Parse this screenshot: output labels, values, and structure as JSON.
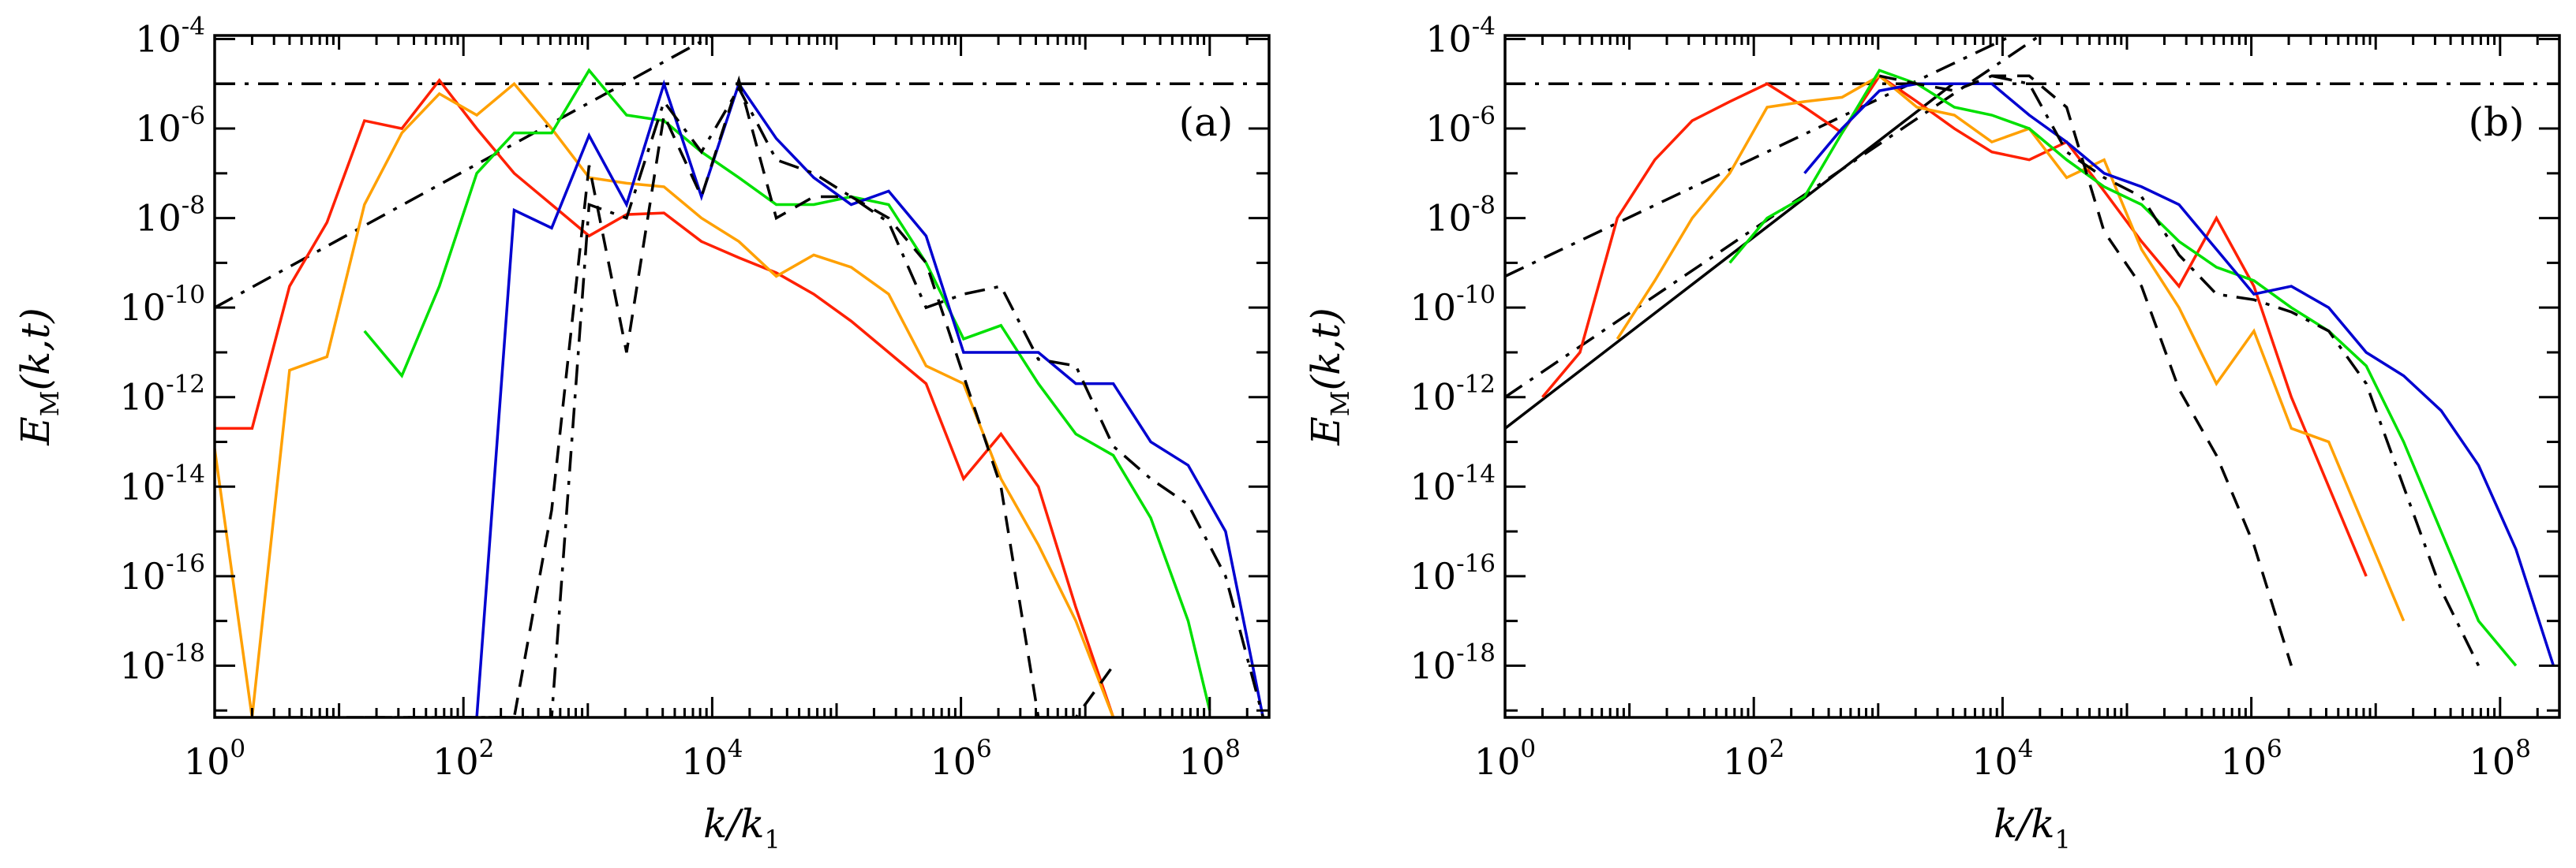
{
  "chart_data": [
    {
      "type": "line",
      "panel_label": "(a)",
      "xlabel": {
        "main": "k/k",
        "sub": "1"
      },
      "ylabel": {
        "main": "E",
        "sub": "M",
        "args": "(k,t)"
      },
      "xscale": "log",
      "yscale": "log",
      "xlim": [
        1,
        300000000.0
      ],
      "ylim": [
        7e-20,
        0.00012
      ],
      "xticks": [
        {
          "base": "10",
          "exp": "0",
          "value": 1
        },
        {
          "base": "10",
          "exp": "2",
          "value": 100
        },
        {
          "base": "10",
          "exp": "4",
          "value": 10000
        },
        {
          "base": "10",
          "exp": "6",
          "value": 1000000
        },
        {
          "base": "10",
          "exp": "8",
          "value": 100000000
        }
      ],
      "yticks": [
        {
          "base": "10",
          "exp": "-4",
          "value": 0.0001
        },
        {
          "base": "10",
          "exp": "-6",
          "value": 1e-06
        },
        {
          "base": "10",
          "exp": "-8",
          "value": 1e-08
        },
        {
          "base": "10",
          "exp": "-10",
          "value": 1e-10
        },
        {
          "base": "10",
          "exp": "-12",
          "value": 1e-12
        },
        {
          "base": "10",
          "exp": "-14",
          "value": 1e-14
        },
        {
          "base": "10",
          "exp": "-16",
          "value": 1e-16
        },
        {
          "base": "10",
          "exp": "-18",
          "value": 1e-18
        }
      ],
      "series": [
        {
          "name": "red",
          "color": "#ff2000",
          "style": "solid",
          "x": [
            1,
            2,
            4,
            8,
            16,
            32,
            64,
            128,
            256,
            512,
            1024,
            2048,
            4096,
            8192,
            16384,
            32768,
            65536,
            131072,
            262144,
            524288,
            1048576,
            2097152,
            4194304,
            8388608,
            16777216
          ],
          "y": [
            2e-13,
            2e-13,
            3e-10,
            8e-09,
            1.5e-06,
            1e-06,
            1.2e-05,
            1e-06,
            1e-07,
            2e-08,
            4e-09,
            1.2e-08,
            1.3e-08,
            3e-09,
            1.3e-09,
            6e-10,
            2e-10,
            5e-11,
            1e-11,
            2e-12,
            1.5e-14,
            1.5e-13,
            1e-14,
            2e-17,
            7e-20
          ]
        },
        {
          "name": "orange",
          "color": "#ffa000",
          "style": "solid",
          "x": [
            1,
            2,
            4,
            8,
            16,
            32,
            64,
            128,
            256,
            512,
            1024,
            2048,
            4096,
            8192,
            16384,
            32768,
            65536,
            131072,
            262144,
            524288,
            1048576,
            2097152,
            4194304,
            8388608,
            16777216
          ],
          "y": [
            7e-14,
            7e-20,
            4e-12,
            8e-12,
            2e-08,
            8e-07,
            6e-06,
            2e-06,
            1e-05,
            1e-06,
            8e-08,
            6e-08,
            5e-08,
            1e-08,
            3e-09,
            5e-10,
            1.5e-09,
            8e-10,
            2e-10,
            5e-12,
            2e-12,
            1.5e-14,
            5e-16,
            1e-17,
            7e-20
          ]
        },
        {
          "name": "green",
          "color": "#00e000",
          "style": "solid",
          "x": [
            16,
            32,
            64,
            128,
            256,
            512,
            1024,
            2048,
            4096,
            8192,
            16384,
            32768,
            65536,
            131072,
            262144,
            524288,
            1048576,
            2097152,
            4194304,
            8388608,
            16777216,
            33554432,
            67108864,
            100000000
          ],
          "y": [
            3e-11,
            3e-12,
            3e-10,
            1e-07,
            8e-07,
            8e-07,
            2e-05,
            2e-06,
            1.5e-06,
            3e-07,
            8e-08,
            2e-08,
            2e-08,
            3e-08,
            2e-08,
            1e-09,
            2e-11,
            4e-11,
            2e-12,
            1.5e-13,
            5e-14,
            2e-15,
            1e-17,
            1e-19
          ]
        },
        {
          "name": "blue",
          "color": "#0000d0",
          "style": "solid",
          "x": [
            64,
            128,
            256,
            512,
            1024,
            2048,
            4096,
            8192,
            16384,
            32768,
            65536,
            131072,
            262144,
            524288,
            1048576,
            2097152,
            4194304,
            8388608,
            16777216,
            33554432,
            67108864,
            134217728,
            268435456
          ],
          "y": [
            7e-20,
            7e-20,
            1.5e-08,
            6e-09,
            7e-07,
            2e-08,
            1e-05,
            3e-08,
            1e-05,
            6e-07,
            8e-08,
            2e-08,
            4e-08,
            4e-09,
            1e-11,
            1e-11,
            1e-11,
            2e-12,
            2e-12,
            1e-13,
            3e-14,
            1e-15,
            7e-20
          ]
        },
        {
          "name": "black-dashed",
          "color": "#000000",
          "style": "dashed",
          "x": [
            4,
            8,
            16,
            32,
            64,
            128,
            256,
            512,
            1024,
            2048,
            4096,
            8192,
            16384,
            32768,
            65536,
            131072,
            262144,
            524288,
            1048576,
            2097152,
            4194304,
            8388608,
            16777216
          ],
          "y": [
            7e-20,
            7e-20,
            7e-20,
            7e-20,
            7e-20,
            7e-20,
            7e-20,
            3e-15,
            1.5e-07,
            1e-11,
            2e-06,
            3e-08,
            1.2e-05,
            1e-08,
            3e-08,
            3e-08,
            1e-08,
            1e-09,
            3e-12,
            1e-14,
            7e-20,
            7e-20,
            1e-18
          ]
        },
        {
          "name": "black-dashdot",
          "color": "#000000",
          "style": "dashdot",
          "x": [
            16,
            32,
            64,
            128,
            256,
            512,
            1024,
            2048,
            4096,
            8192,
            16384,
            32768,
            65536,
            131072,
            262144,
            524288,
            1048576,
            2097152,
            4194304,
            8388608,
            16777216,
            33554432,
            67108864,
            134217728,
            268435456
          ],
          "y": [
            7e-20,
            7e-20,
            7e-20,
            7e-20,
            7e-20,
            7e-20,
            2e-08,
            1e-08,
            4e-06,
            3e-07,
            8e-06,
            2e-07,
            1e-07,
            3e-08,
            8e-09,
            1e-10,
            2e-10,
            3e-10,
            7e-12,
            5e-12,
            8e-14,
            1.5e-14,
            4e-15,
            1e-16,
            7e-20
          ]
        }
      ],
      "reference_lines": [
        {
          "name": "horizontal-ref",
          "style": "dashdot",
          "x": [
            1,
            300000000.0
          ],
          "y": [
            1e-05,
            1e-05
          ]
        },
        {
          "name": "sloped-ref",
          "style": "dashdot",
          "x": [
            1,
            10000
          ],
          "y": [
            1e-10,
            0.00012
          ]
        }
      ]
    },
    {
      "type": "line",
      "panel_label": "(b)",
      "xlabel": {
        "main": "k/k",
        "sub": "1"
      },
      "ylabel": {
        "main": "E",
        "sub": "M",
        "args": "(k,t)"
      },
      "xscale": "log",
      "yscale": "log",
      "xlim": [
        1,
        300000000.0
      ],
      "ylim": [
        7e-20,
        0.00012
      ],
      "xticks": [
        {
          "base": "10",
          "exp": "0",
          "value": 1
        },
        {
          "base": "10",
          "exp": "2",
          "value": 100
        },
        {
          "base": "10",
          "exp": "4",
          "value": 10000
        },
        {
          "base": "10",
          "exp": "6",
          "value": 1000000
        },
        {
          "base": "10",
          "exp": "8",
          "value": 100000000
        }
      ],
      "yticks": [
        {
          "base": "10",
          "exp": "-4",
          "value": 0.0001
        },
        {
          "base": "10",
          "exp": "-6",
          "value": 1e-06
        },
        {
          "base": "10",
          "exp": "-8",
          "value": 1e-08
        },
        {
          "base": "10",
          "exp": "-10",
          "value": 1e-10
        },
        {
          "base": "10",
          "exp": "-12",
          "value": 1e-12
        },
        {
          "base": "10",
          "exp": "-14",
          "value": 1e-14
        },
        {
          "base": "10",
          "exp": "-16",
          "value": 1e-16
        },
        {
          "base": "10",
          "exp": "-18",
          "value": 1e-18
        }
      ],
      "series": [
        {
          "name": "red",
          "color": "#ff2000",
          "style": "solid",
          "x": [
            2,
            4,
            8,
            16,
            32,
            64,
            128,
            256,
            512,
            1024,
            2048,
            4096,
            8192,
            16384,
            32768,
            65536,
            131072,
            262144,
            524288,
            1048576,
            2097152,
            4194304,
            8388608
          ],
          "y": [
            1e-12,
            1e-11,
            1e-08,
            2e-07,
            1.5e-06,
            4e-06,
            1e-05,
            3e-06,
            8e-07,
            1.5e-05,
            4e-06,
            1e-06,
            3e-07,
            2e-07,
            5e-07,
            4e-08,
            3e-09,
            3e-10,
            1e-08,
            3e-10,
            1e-12,
            1e-14,
            1e-16
          ]
        },
        {
          "name": "orange",
          "color": "#ffa000",
          "style": "solid",
          "x": [
            8,
            16,
            32,
            64,
            128,
            256,
            512,
            1024,
            2048,
            4096,
            8192,
            16384,
            32768,
            65536,
            131072,
            262144,
            524288,
            1048576,
            2097152,
            4194304,
            8388608,
            16777216
          ],
          "y": [
            2e-11,
            4e-10,
            1e-08,
            1e-07,
            3e-06,
            4e-06,
            5e-06,
            1.5e-05,
            3e-06,
            2e-06,
            5e-07,
            1e-06,
            8e-08,
            2e-07,
            2e-09,
            1e-10,
            2e-12,
            3e-11,
            2e-13,
            1e-13,
            1e-15,
            1e-17
          ]
        },
        {
          "name": "green",
          "color": "#00e000",
          "style": "solid",
          "x": [
            64,
            128,
            256,
            512,
            1024,
            2048,
            4096,
            8192,
            16384,
            32768,
            65536,
            131072,
            262144,
            524288,
            1048576,
            2097152,
            4194304,
            8388608,
            16777216,
            33554432,
            67108864,
            134217728
          ],
          "y": [
            1e-09,
            1e-08,
            3e-08,
            8e-07,
            2e-05,
            1e-05,
            3e-06,
            2e-06,
            1e-06,
            2e-07,
            5e-08,
            2e-08,
            3e-09,
            8e-10,
            4e-10,
            1e-10,
            3e-11,
            5e-12,
            1e-13,
            1e-15,
            1e-17,
            1e-18
          ]
        },
        {
          "name": "blue",
          "color": "#0000d0",
          "style": "solid",
          "x": [
            256,
            512,
            1024,
            2048,
            4096,
            8192,
            16384,
            32768,
            65536,
            131072,
            262144,
            524288,
            1048576,
            2097152,
            4194304,
            8388608,
            16777216,
            33554432,
            67108864,
            134217728,
            268435456
          ],
          "y": [
            1e-07,
            1e-06,
            7e-06,
            1e-05,
            1e-05,
            1e-05,
            2e-06,
            5e-07,
            1e-07,
            5e-08,
            2e-08,
            2e-09,
            2e-10,
            3e-10,
            1e-10,
            1e-11,
            3e-12,
            5e-13,
            3e-14,
            4e-16,
            1e-18
          ]
        },
        {
          "name": "black-dashed",
          "color": "#000000",
          "style": "dashed",
          "x": [
            1024,
            2048,
            4096,
            8192,
            16384,
            32768,
            65536,
            131072,
            262144,
            524288,
            1048576,
            2097152
          ],
          "y": [
            1.5e-05,
            1e-05,
            7e-06,
            1.5e-05,
            1.5e-05,
            3e-06,
            5e-09,
            3e-10,
            1.5e-12,
            5e-14,
            5e-16,
            1e-18
          ]
        },
        {
          "name": "black-dashdot",
          "color": "#000000",
          "style": "dashdot",
          "x": [
            8192,
            16384,
            32768,
            65536,
            131072,
            262144,
            524288,
            1048576,
            2097152,
            4194304,
            8388608,
            16777216,
            33554432,
            67108864
          ],
          "y": [
            1.5e-05,
            1e-05,
            3e-07,
            8e-08,
            3e-08,
            1.5e-09,
            2e-10,
            1.5e-10,
            8e-11,
            3e-11,
            2e-12,
            1e-14,
            5e-17,
            1e-18
          ]
        }
      ],
      "reference_lines": [
        {
          "name": "horizontal-ref",
          "style": "dashdot",
          "x": [
            1,
            300000000.0
          ],
          "y": [
            1e-05,
            1e-05
          ]
        },
        {
          "name": "sloped-ref-upper",
          "style": "dashdot",
          "x": [
            1,
            12000
          ],
          "y": [
            5e-10,
            0.00012
          ]
        },
        {
          "name": "sloped-ref-middle",
          "style": "dashdot",
          "x": [
            1,
            20000
          ],
          "y": [
            1e-12,
            0.00012
          ]
        },
        {
          "name": "sloped-ref-solid",
          "style": "solid",
          "x": [
            1,
            4000
          ],
          "y": [
            2e-13,
            1e-05
          ]
        }
      ]
    }
  ]
}
